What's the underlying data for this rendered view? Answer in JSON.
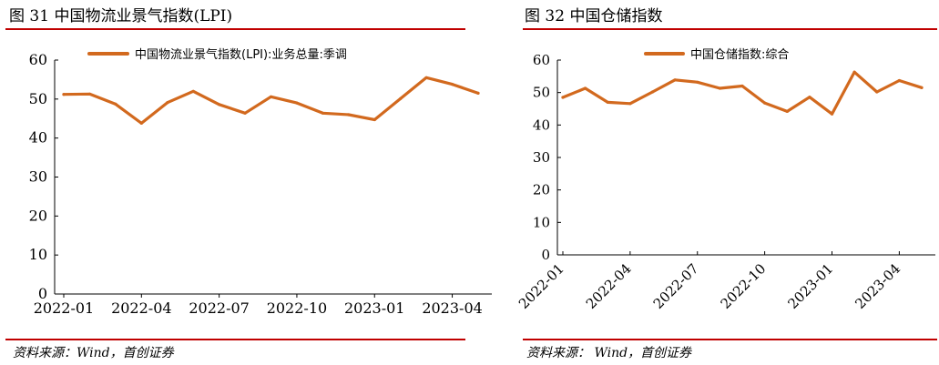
{
  "panels": [
    {
      "figure_title": "图  31  中国物流业景气指数(LPI)",
      "source": "资料来源：Wind，首创证券"
    },
    {
      "figure_title": "图  32 中国仓储指数",
      "source": "资料来源：  Wind，首创证券"
    }
  ],
  "colors": {
    "series": "#d2691e",
    "rule": "#c00000",
    "axis": "#000000"
  },
  "chart_data": [
    {
      "type": "line",
      "title": "",
      "xlabel": "",
      "ylabel": "",
      "ylim": [
        0,
        60
      ],
      "yticks": [
        0,
        10,
        20,
        30,
        40,
        50,
        60
      ],
      "grid": false,
      "legend_position": "top",
      "x_tick_labels": [
        "2022-01",
        "2022-04",
        "2022-07",
        "2022-10",
        "2023-01",
        "2023-04"
      ],
      "x_tick_label_rotation": 0,
      "x": [
        "2022-01",
        "2022-02",
        "2022-03",
        "2022-04",
        "2022-05",
        "2022-06",
        "2022-07",
        "2022-08",
        "2022-09",
        "2022-10",
        "2022-11",
        "2022-12",
        "2023-01",
        "2023-02",
        "2023-03",
        "2023-04",
        "2023-05"
      ],
      "series": [
        {
          "name": "中国物流业景气指数(LPI):业务总量:季调",
          "values": [
            51.2,
            51.3,
            48.7,
            43.8,
            49.1,
            52.0,
            48.6,
            46.4,
            50.6,
            49.0,
            46.4,
            46.0,
            44.7,
            50.1,
            55.5,
            53.8,
            51.5
          ]
        }
      ]
    },
    {
      "type": "line",
      "title": "",
      "xlabel": "",
      "ylabel": "",
      "ylim": [
        0,
        60
      ],
      "yticks": [
        0,
        10,
        20,
        30,
        40,
        50,
        60
      ],
      "grid": false,
      "legend_position": "top",
      "x_tick_labels": [
        "2022-01",
        "2022-04",
        "2022-07",
        "2022-10",
        "2023-01",
        "2023-04"
      ],
      "x_tick_label_rotation": -45,
      "x": [
        "2022-01",
        "2022-02",
        "2022-03",
        "2022-04",
        "2022-05",
        "2022-06",
        "2022-07",
        "2022-08",
        "2022-09",
        "2022-10",
        "2022-11",
        "2022-12",
        "2023-01",
        "2023-02",
        "2023-03",
        "2023-04",
        "2023-05"
      ],
      "series": [
        {
          "name": "中国仓储指数:综合",
          "values": [
            48.5,
            51.3,
            47.0,
            46.6,
            50.2,
            53.9,
            53.2,
            51.3,
            52.0,
            46.8,
            44.2,
            48.6,
            43.4,
            56.3,
            50.2,
            53.7,
            51.5
          ]
        }
      ]
    }
  ]
}
